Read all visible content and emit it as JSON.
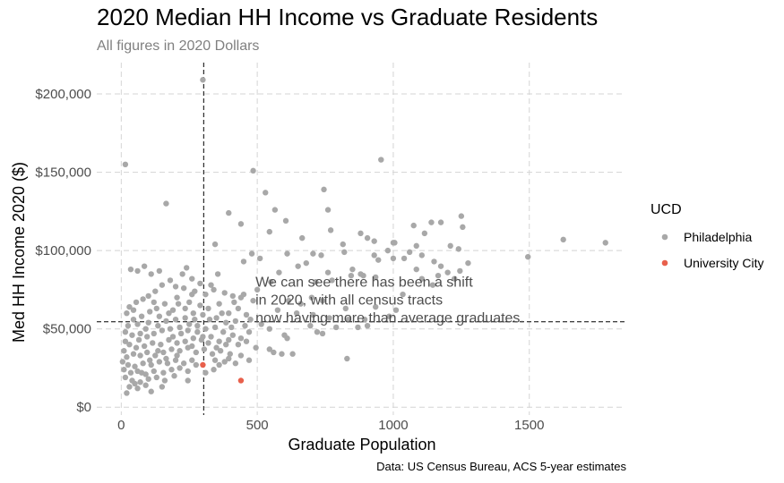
{
  "chart_data": {
    "type": "scatter",
    "title": "2020 Median HH Income vs Graduate Residents",
    "subtitle": "All figures in 2020 Dollars",
    "xlabel": "Graduate Population",
    "ylabel": "Med HH Income 2020 ($)",
    "caption": "Data: US Census Bureau, ACS 5-year estimates",
    "xlim": [
      -90,
      1850
    ],
    "ylim": [
      -5000,
      220000
    ],
    "x_ticks": [
      0,
      500,
      1000,
      1500
    ],
    "x_tick_labels": [
      "0",
      "500",
      "1000",
      "1500"
    ],
    "y_ticks": [
      0,
      50000,
      100000,
      150000,
      200000
    ],
    "y_tick_labels": [
      "$0",
      "$50,000",
      "$100,000",
      "$150,000",
      "$200,000"
    ],
    "grid": true,
    "legend": {
      "title": "UCD",
      "position": "right"
    },
    "reference_lines": [
      {
        "orientation": "vertical",
        "x": 303,
        "style": "dashed"
      },
      {
        "orientation": "horizontal",
        "y": 54500,
        "style": "dashed"
      }
    ],
    "annotation": {
      "lines": [
        "We can see there has been a shift",
        "in 2020, with all census tracts",
        "now having more than average graduates."
      ],
      "x": 500,
      "y": 78000
    },
    "series": [
      {
        "name": "Philadelphia",
        "color": "#A8A8A8",
        "points": [
          [
            300,
            209000
          ],
          [
            15,
            155000
          ],
          [
            955,
            158000
          ],
          [
            485,
            151000
          ],
          [
            745,
            139000
          ],
          [
            530,
            137000
          ],
          [
            165,
            130000
          ],
          [
            760,
            126000
          ],
          [
            395,
            124000
          ],
          [
            565,
            126000
          ],
          [
            1250,
            122000
          ],
          [
            605,
            119000
          ],
          [
            440,
            117000
          ],
          [
            1175,
            118000
          ],
          [
            1140,
            118000
          ],
          [
            1075,
            116000
          ],
          [
            1255,
            115000
          ],
          [
            545,
            112000
          ],
          [
            880,
            111000
          ],
          [
            665,
            108000
          ],
          [
            770,
            113000
          ],
          [
            1625,
            107000
          ],
          [
            1780,
            105000
          ],
          [
            1115,
            111000
          ],
          [
            1000,
            105000
          ],
          [
            815,
            104000
          ],
          [
            1005,
            105000
          ],
          [
            930,
            106000
          ],
          [
            905,
            108000
          ],
          [
            1085,
            103000
          ],
          [
            1210,
            103000
          ],
          [
            1240,
            101000
          ],
          [
            705,
            98000
          ],
          [
            735,
            97000
          ],
          [
            1495,
            96000
          ],
          [
            1000,
            95000
          ],
          [
            1275,
            92000
          ],
          [
            1040,
            95000
          ],
          [
            480,
            98000
          ],
          [
            450,
            93000
          ],
          [
            345,
            104000
          ],
          [
            610,
            98000
          ],
          [
            820,
            99000
          ],
          [
            945,
            94000
          ],
          [
            980,
            100000
          ],
          [
            1060,
            99000
          ],
          [
            1105,
            97000
          ],
          [
            1150,
            93000
          ],
          [
            1175,
            90000
          ],
          [
            930,
            97000
          ],
          [
            510,
            95000
          ],
          [
            680,
            92000
          ],
          [
            850,
            88000
          ],
          [
            1165,
            84000
          ],
          [
            1225,
            82000
          ],
          [
            1085,
            88000
          ],
          [
            880,
            85000
          ],
          [
            935,
            83000
          ],
          [
            760,
            86000
          ],
          [
            715,
            80000
          ],
          [
            775,
            81000
          ],
          [
            845,
            84000
          ],
          [
            890,
            84000
          ],
          [
            1145,
            78000
          ],
          [
            1200,
            86000
          ],
          [
            1245,
            87000
          ],
          [
            1105,
            82000
          ],
          [
            650,
            90000
          ],
          [
            580,
            86000
          ],
          [
            550,
            80000
          ],
          [
            500,
            75000
          ],
          [
            485,
            68000
          ],
          [
            450,
            72000
          ],
          [
            700,
            70000
          ],
          [
            740,
            68000
          ],
          [
            615,
            68000
          ],
          [
            575,
            62000
          ],
          [
            660,
            66000
          ],
          [
            825,
            63000
          ],
          [
            935,
            64000
          ],
          [
            1010,
            62000
          ],
          [
            1035,
            72000
          ],
          [
            645,
            60000
          ],
          [
            705,
            59000
          ],
          [
            765,
            57000
          ],
          [
            835,
            56000
          ],
          [
            870,
            51000
          ],
          [
            720,
            48000
          ],
          [
            695,
            52000
          ],
          [
            790,
            51000
          ],
          [
            740,
            47000
          ],
          [
            600,
            46000
          ],
          [
            545,
            50000
          ],
          [
            515,
            53000
          ],
          [
            895,
            56000
          ],
          [
            985,
            58000
          ],
          [
            905,
            52000
          ],
          [
            560,
            35000
          ],
          [
            630,
            34000
          ],
          [
            610,
            44000
          ],
          [
            590,
            34000
          ],
          [
            545,
            37000
          ],
          [
            830,
            31000
          ],
          [
            495,
            38000
          ],
          [
            460,
            42000
          ],
          [
            85,
            90000
          ],
          [
            35,
            88000
          ],
          [
            60,
            87000
          ],
          [
            110,
            85000
          ],
          [
            140,
            87000
          ],
          [
            240,
            89000
          ],
          [
            260,
            82000
          ],
          [
            180,
            81000
          ],
          [
            150,
            78000
          ],
          [
            200,
            77000
          ],
          [
            230,
            76000
          ],
          [
            270,
            74000
          ],
          [
            310,
            72000
          ],
          [
            340,
            75000
          ],
          [
            380,
            73000
          ],
          [
            410,
            71000
          ],
          [
            125,
            74000
          ],
          [
            100,
            71000
          ],
          [
            80,
            69000
          ],
          [
            55,
            67000
          ],
          [
            30,
            64000
          ],
          [
            20,
            60000
          ],
          [
            45,
            62000
          ],
          [
            75,
            58000
          ],
          [
            105,
            61000
          ],
          [
            130,
            63000
          ],
          [
            160,
            66000
          ],
          [
            190,
            62000
          ],
          [
            210,
            66000
          ],
          [
            250,
            67000
          ],
          [
            290,
            65000
          ],
          [
            320,
            63000
          ],
          [
            360,
            66000
          ],
          [
            395,
            60000
          ],
          [
            430,
            63000
          ],
          [
            460,
            59000
          ],
          [
            420,
            55000
          ],
          [
            385,
            54000
          ],
          [
            350,
            57000
          ],
          [
            300,
            59000
          ],
          [
            265,
            60000
          ],
          [
            235,
            57000
          ],
          [
            200,
            56000
          ],
          [
            165,
            55000
          ],
          [
            135,
            52000
          ],
          [
            100,
            54000
          ],
          [
            60,
            53000
          ],
          [
            25,
            52000
          ],
          [
            15,
            48000
          ],
          [
            40,
            46000
          ],
          [
            70,
            47000
          ],
          [
            95,
            45000
          ],
          [
            120,
            47000
          ],
          [
            150,
            49000
          ],
          [
            180,
            50000
          ],
          [
            215,
            51000
          ],
          [
            245,
            49000
          ],
          [
            280,
            52000
          ],
          [
            310,
            50000
          ],
          [
            345,
            51000
          ],
          [
            375,
            48000
          ],
          [
            410,
            46000
          ],
          [
            440,
            44000
          ],
          [
            470,
            48000
          ],
          [
            430,
            40000
          ],
          [
            395,
            43000
          ],
          [
            360,
            42000
          ],
          [
            330,
            45000
          ],
          [
            295,
            43000
          ],
          [
            265,
            44000
          ],
          [
            235,
            42000
          ],
          [
            205,
            41000
          ],
          [
            175,
            43000
          ],
          [
            145,
            40000
          ],
          [
            115,
            41000
          ],
          [
            85,
            39000
          ],
          [
            55,
            38000
          ],
          [
            30,
            40000
          ],
          [
            10,
            36000
          ],
          [
            20,
            32000
          ],
          [
            45,
            34000
          ],
          [
            70,
            33000
          ],
          [
            95,
            35000
          ],
          [
            125,
            33000
          ],
          [
            155,
            35000
          ],
          [
            185,
            37000
          ],
          [
            215,
            36000
          ],
          [
            245,
            38000
          ],
          [
            275,
            35000
          ],
          [
            305,
            37000
          ],
          [
            335,
            34000
          ],
          [
            365,
            36000
          ],
          [
            400,
            34000
          ],
          [
            440,
            33000
          ],
          [
            470,
            30000
          ],
          [
            420,
            28000
          ],
          [
            380,
            29000
          ],
          [
            345,
            30000
          ],
          [
            260,
            30000
          ],
          [
            230,
            28000
          ],
          [
            200,
            30000
          ],
          [
            170,
            28000
          ],
          [
            140,
            29000
          ],
          [
            110,
            27000
          ],
          [
            80,
            28000
          ],
          [
            50,
            26000
          ],
          [
            25,
            27000
          ],
          [
            10,
            24000
          ],
          [
            35,
            22000
          ],
          [
            60,
            23000
          ],
          [
            90,
            21000
          ],
          [
            120,
            23000
          ],
          [
            155,
            22000
          ],
          [
            185,
            24000
          ],
          [
            215,
            25000
          ],
          [
            245,
            23000
          ],
          [
            275,
            27000
          ],
          [
            360,
            27000
          ],
          [
            395,
            31000
          ],
          [
            15,
            19000
          ],
          [
            40,
            17000
          ],
          [
            70,
            16000
          ],
          [
            100,
            18000
          ],
          [
            130,
            19000
          ],
          [
            160,
            17000
          ],
          [
            195,
            20000
          ],
          [
            30,
            13000
          ],
          [
            60,
            12000
          ],
          [
            90,
            14000
          ],
          [
            20,
            9000
          ],
          [
            50,
            15000
          ],
          [
            75,
            22000
          ],
          [
            105,
            30000
          ],
          [
            135,
            36000
          ],
          [
            165,
            31000
          ],
          [
            190,
            45000
          ],
          [
            220,
            47000
          ],
          [
            250,
            53000
          ],
          [
            280,
            48000
          ],
          [
            320,
            41000
          ],
          [
            350,
            38000
          ],
          [
            385,
            40000
          ],
          [
            455,
            52000
          ],
          [
            475,
            56000
          ],
          [
            300,
            45000
          ],
          [
            270,
            56000
          ],
          [
            235,
            63000
          ],
          [
            325,
            56000
          ],
          [
            405,
            51000
          ],
          [
            370,
            60000
          ],
          [
            415,
            67000
          ],
          [
            440,
            70000
          ],
          [
            90,
            50000
          ],
          [
            65,
            43000
          ],
          [
            140,
            58000
          ],
          [
            175,
            60000
          ],
          [
            205,
            70000
          ],
          [
            260,
            72000
          ],
          [
            290,
            79000
          ],
          [
            330,
            78000
          ],
          [
            355,
            85000
          ],
          [
            225,
            85000
          ],
          [
            120,
            67000
          ],
          [
            45,
            56000
          ],
          [
            15,
            42000
          ],
          [
            5,
            29000
          ],
          [
            110,
            10000
          ],
          [
            150,
            13000
          ],
          [
            245,
            17000
          ],
          [
            310,
            22000
          ],
          [
            340,
            24000
          ],
          [
            205,
            33000
          ],
          [
            260,
            39000
          ]
        ]
      },
      {
        "name": "University City",
        "color": "#E8604C",
        "points": [
          [
            300,
            27000
          ],
          [
            440,
            17000
          ]
        ]
      }
    ]
  }
}
